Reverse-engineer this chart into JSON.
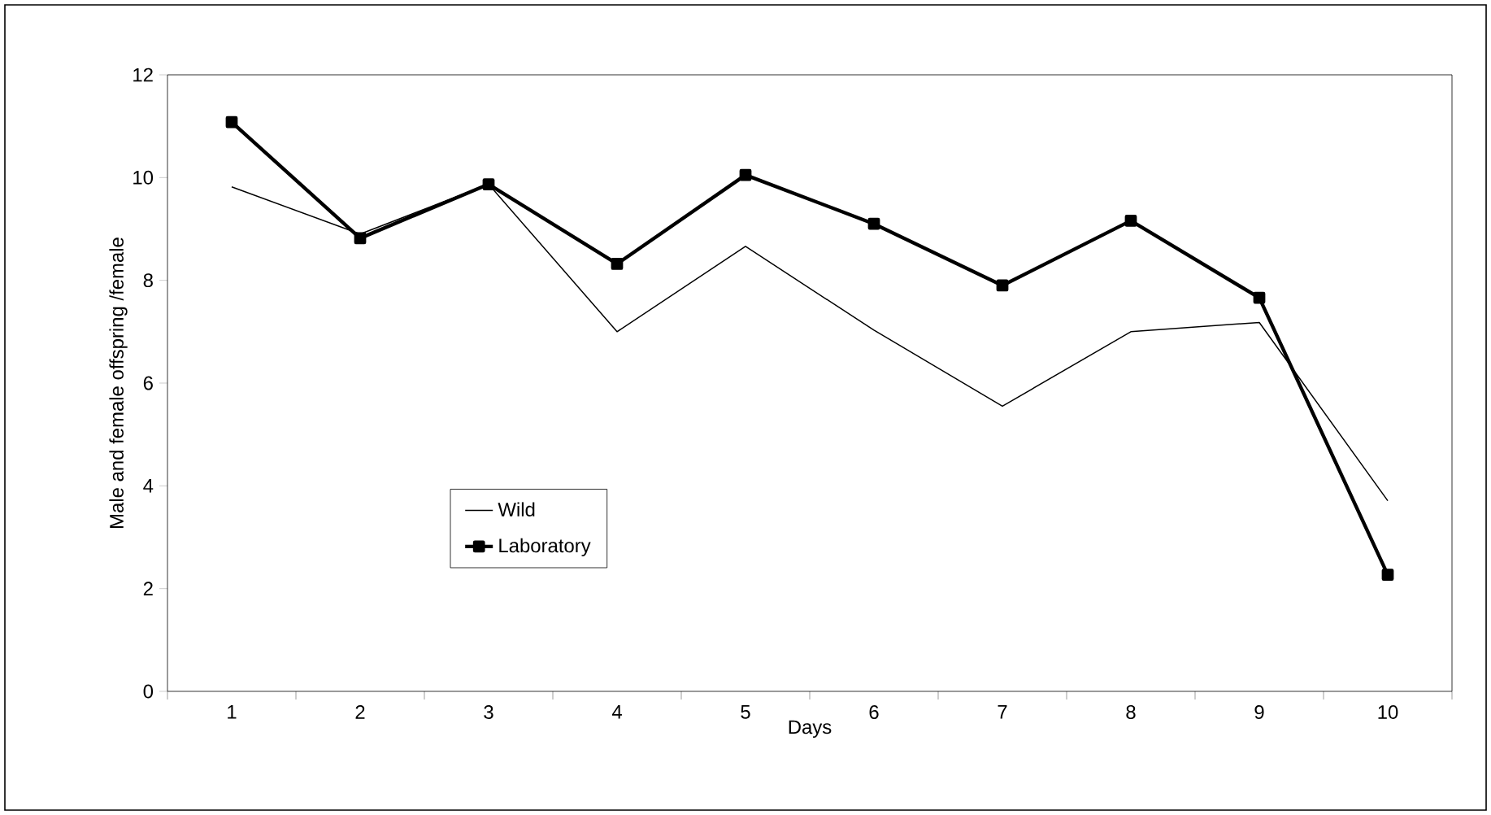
{
  "chart_data": {
    "type": "line",
    "xlabel": "Days",
    "ylabel": "Male and female offspring /female",
    "categories": [
      "1",
      "2",
      "3",
      "4",
      "5",
      "6",
      "7",
      "8",
      "9",
      "10"
    ],
    "series": [
      {
        "name": "Wild",
        "color": "#000000",
        "marker": "none",
        "values": [
          9.82,
          8.9,
          9.87,
          7.0,
          8.66,
          7.03,
          5.55,
          7.0,
          7.18,
          3.71
        ]
      },
      {
        "name": "Laboratory",
        "color": "#000000",
        "marker": "square",
        "values": [
          11.08,
          8.82,
          9.87,
          8.32,
          10.05,
          9.1,
          7.9,
          9.16,
          7.66,
          2.27
        ]
      }
    ],
    "ylim": [
      0,
      12
    ],
    "yticks": [
      0,
      2,
      4,
      6,
      8,
      10,
      12
    ],
    "grid": false,
    "legend": "bottom left",
    "line_style": "solid"
  }
}
